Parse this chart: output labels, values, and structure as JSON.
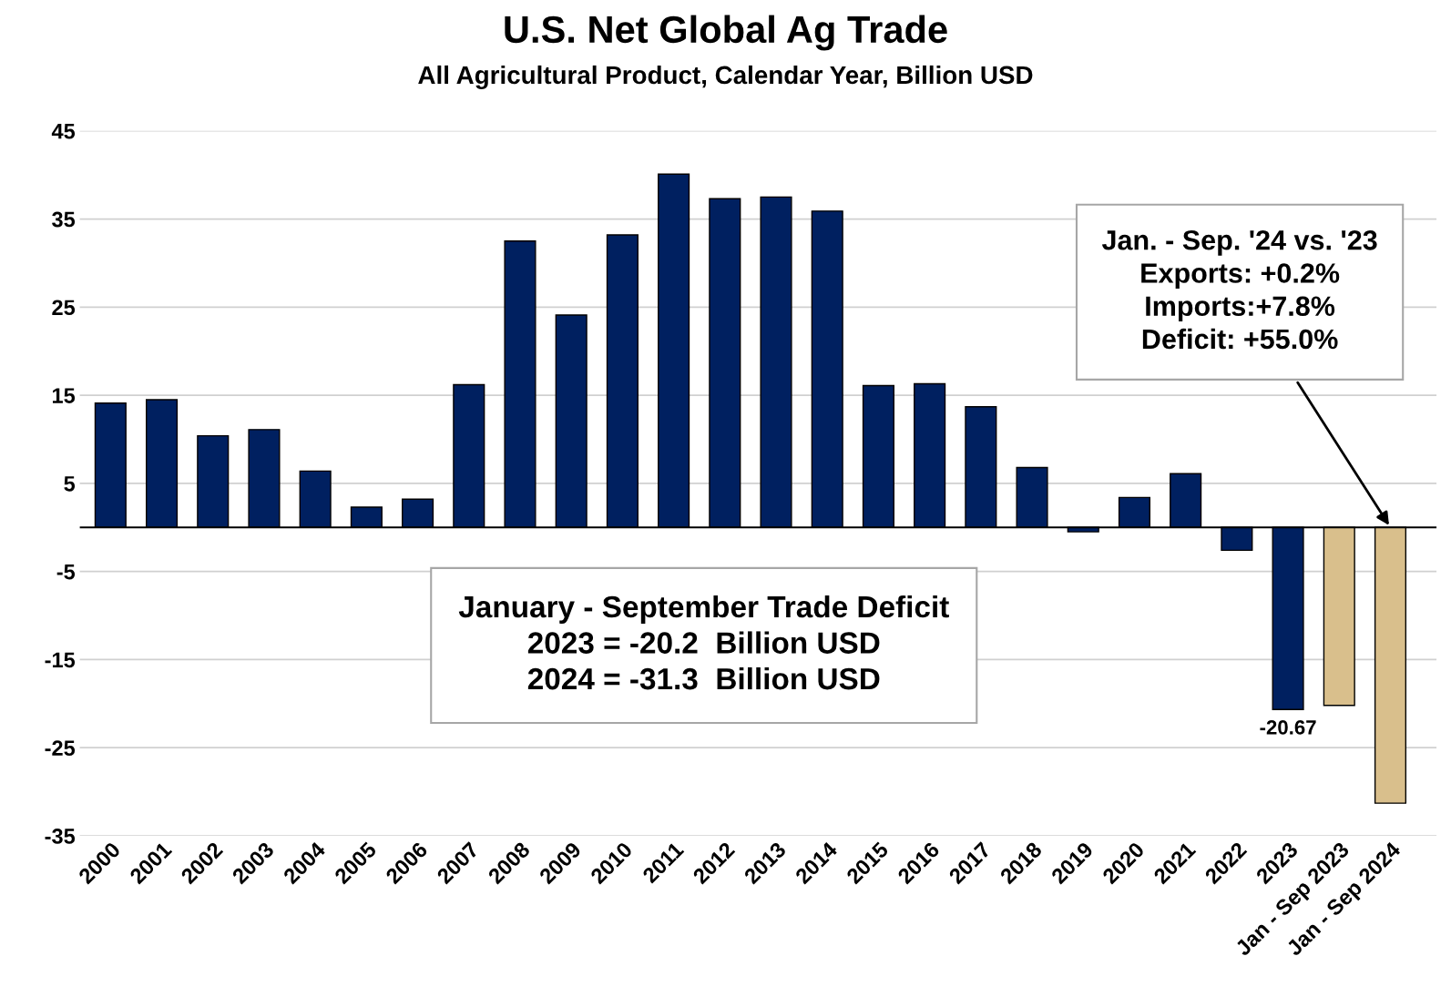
{
  "chart_data": {
    "type": "bar",
    "title": "U.S. Net Global Ag Trade",
    "subtitle": "All Agricultural Product, Calendar Year, Billion USD",
    "categories": [
      "2000",
      "2001",
      "2002",
      "2003",
      "2004",
      "2005",
      "2006",
      "2007",
      "2008",
      "2009",
      "2010",
      "2011",
      "2012",
      "2013",
      "2014",
      "2015",
      "2016",
      "2017",
      "2018",
      "2019",
      "2020",
      "2021",
      "2022",
      "2023",
      "Jan - Sep 2023",
      "Jan - Sep 2024"
    ],
    "values": [
      14.1,
      14.5,
      10.4,
      11.1,
      6.4,
      2.3,
      3.2,
      16.2,
      32.5,
      24.1,
      33.2,
      40.1,
      37.3,
      37.5,
      35.9,
      16.1,
      16.3,
      13.7,
      6.8,
      -0.5,
      3.4,
      6.1,
      -2.6,
      -20.67,
      -20.2,
      -31.3
    ],
    "colors": [
      "#002060",
      "#002060",
      "#002060",
      "#002060",
      "#002060",
      "#002060",
      "#002060",
      "#002060",
      "#002060",
      "#002060",
      "#002060",
      "#002060",
      "#002060",
      "#002060",
      "#002060",
      "#002060",
      "#002060",
      "#002060",
      "#002060",
      "#002060",
      "#002060",
      "#002060",
      "#002060",
      "#002060",
      "#d9bf8c",
      "#d9bf8c"
    ],
    "value_labels": [
      null,
      null,
      null,
      null,
      null,
      null,
      null,
      null,
      null,
      null,
      null,
      null,
      null,
      null,
      null,
      null,
      null,
      null,
      null,
      null,
      null,
      null,
      null,
      "-20.67",
      null,
      null
    ],
    "ylim": [
      -35,
      45
    ],
    "yticks": [
      -35,
      -25,
      -15,
      -5,
      5,
      15,
      25,
      35,
      45
    ],
    "grid": "y",
    "legend": false,
    "annotations": [
      "January - September Trade Deficit\n2023 = -20.2  Billion USD\n2024 = -31.3  Billion USD",
      "Jan. - Sep. '24 vs. '23\nExports: +0.2%\nImports:+7.8%\nDeficit: +55.0%"
    ]
  }
}
